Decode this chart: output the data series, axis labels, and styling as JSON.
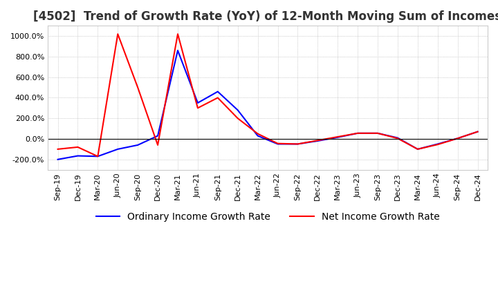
{
  "title": "[4502]  Trend of Growth Rate (YoY) of 12-Month Moving Sum of Incomes",
  "ylim": [
    -300,
    1100
  ],
  "yticks": [
    -200,
    0,
    200,
    400,
    600,
    800,
    1000
  ],
  "legend_labels": [
    "Ordinary Income Growth Rate",
    "Net Income Growth Rate"
  ],
  "line_colors": [
    "#0000ff",
    "#ff0000"
  ],
  "x_labels": [
    "Sep-19",
    "Dec-19",
    "Mar-20",
    "Jun-20",
    "Sep-20",
    "Dec-20",
    "Mar-21",
    "Jun-21",
    "Sep-21",
    "Dec-21",
    "Mar-22",
    "Jun-22",
    "Sep-22",
    "Dec-22",
    "Mar-23",
    "Jun-23",
    "Sep-23",
    "Dec-23",
    "Mar-24",
    "Jun-24",
    "Sep-24",
    "Dec-24"
  ],
  "ordinary_income": [
    -200,
    -165,
    -170,
    -100,
    -60,
    30,
    860,
    350,
    460,
    280,
    30,
    -50,
    -50,
    -20,
    15,
    55,
    55,
    10,
    -100,
    -50,
    5,
    70
  ],
  "net_income": [
    -100,
    -80,
    -170,
    1020,
    500,
    -60,
    1020,
    300,
    400,
    200,
    50,
    -45,
    -50,
    -15,
    20,
    55,
    55,
    5,
    -100,
    -55,
    5,
    70
  ],
  "background_color": "#ffffff",
  "grid_color": "#aaaaaa",
  "title_fontsize": 12,
  "tick_fontsize": 8,
  "legend_fontsize": 10
}
